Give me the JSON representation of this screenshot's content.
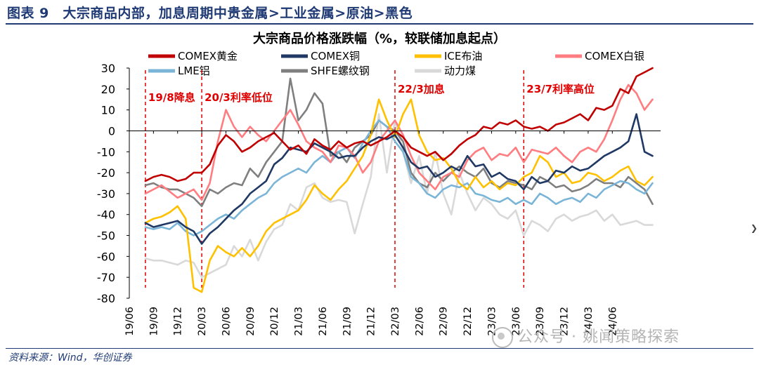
{
  "figure_caption": "图表 9　大宗商品内部，加息周期中贵金属>工业金属>原油>黑色",
  "source_note": "资料来源：Wind，华创证券",
  "watermark_text": "公众号 · 姚闻策略探索",
  "chart_data": {
    "type": "line",
    "title": "大宗商品价格涨跌幅（%，较联储加息起点）",
    "xlabel": "",
    "ylabel": "",
    "ylim": [
      -80,
      30
    ],
    "yticks": [
      30,
      20,
      10,
      0,
      -10,
      -20,
      -30,
      -40,
      -50,
      -60,
      -70,
      -80
    ],
    "xlim": [
      0,
      66
    ],
    "xtick_labels": [
      "19/06",
      "19/09",
      "19/12",
      "20/03",
      "20/06",
      "20/09",
      "20/12",
      "21/03",
      "21/06",
      "21/09",
      "21/12",
      "22/03",
      "22/06",
      "22/09",
      "22/12",
      "23/03",
      "23/06",
      "23/09",
      "23/12",
      "24/03",
      "24/06"
    ],
    "legend_position": "top",
    "grid": false,
    "annotations": [
      {
        "label": "19/8降息",
        "x": 2
      },
      {
        "label": "20/3利率低位",
        "x": 9
      },
      {
        "label": "22/3加息",
        "x": 33
      },
      {
        "label": "23/7利率高位",
        "x": 49
      }
    ],
    "series": [
      {
        "name": "COMEX黄金",
        "color": "#c00000",
        "x": [
          2,
          3,
          4,
          5,
          6,
          7,
          8,
          9,
          10,
          11,
          12,
          13,
          14,
          15,
          16,
          17,
          18,
          19,
          20,
          21,
          22,
          23,
          24,
          25,
          26,
          27,
          28,
          29,
          30,
          31,
          32,
          33,
          34,
          35,
          36,
          37,
          38,
          39,
          40,
          41,
          42,
          43,
          44,
          45,
          46,
          47,
          48,
          49,
          50,
          51,
          52,
          53,
          54,
          55,
          56,
          57,
          58,
          59,
          60,
          61,
          62,
          63,
          64,
          65
        ],
        "y": [
          -24,
          -22,
          -21,
          -22,
          -24,
          -23,
          -20,
          -20,
          -16,
          -7,
          -2,
          -5,
          -10,
          -8,
          -5,
          -3,
          -1,
          -5,
          -9,
          -7,
          -11,
          -4,
          -7,
          -9,
          -5,
          -8,
          -6,
          -5,
          -7,
          -5,
          -3,
          0,
          -3,
          -8,
          -10,
          -12,
          -10,
          -14,
          -11,
          -7,
          -4,
          -2,
          2,
          1,
          4,
          3,
          5,
          2,
          1,
          2,
          0,
          3,
          4,
          6,
          8,
          5,
          11,
          10,
          12,
          20,
          18,
          26,
          28,
          30
        ]
      },
      {
        "name": "COMEX铜",
        "color": "#1f3864",
        "x": [
          2,
          3,
          4,
          5,
          6,
          7,
          8,
          9,
          10,
          11,
          12,
          13,
          14,
          15,
          16,
          17,
          18,
          19,
          20,
          21,
          22,
          23,
          24,
          25,
          26,
          27,
          28,
          29,
          30,
          31,
          32,
          33,
          34,
          35,
          36,
          37,
          38,
          39,
          40,
          41,
          42,
          43,
          44,
          45,
          46,
          47,
          48,
          49,
          50,
          51,
          52,
          53,
          54,
          55,
          56,
          57,
          58,
          59,
          60,
          61,
          62,
          63,
          64,
          65
        ],
        "y": [
          -44,
          -46,
          -45,
          -44,
          -43,
          -46,
          -48,
          -54,
          -49,
          -46,
          -42,
          -38,
          -35,
          -30,
          -27,
          -24,
          -16,
          -13,
          -8,
          -9,
          -10,
          -6,
          -8,
          -10,
          -13,
          -12,
          -12,
          -8,
          -5,
          -3,
          -4,
          -2,
          -8,
          -15,
          -18,
          -17,
          -22,
          -20,
          -17,
          -19,
          -12,
          -17,
          -16,
          -22,
          -20,
          -23,
          -24,
          -28,
          -22,
          -25,
          -24,
          -19,
          -20,
          -17,
          -19,
          -18,
          -15,
          -12,
          -10,
          -8,
          -5,
          8,
          -10,
          -12
        ]
      },
      {
        "name": "ICE布油",
        "color": "#ffc000",
        "x": [
          2,
          3,
          4,
          5,
          6,
          7,
          8,
          9,
          10,
          11,
          12,
          13,
          14,
          15,
          16,
          17,
          18,
          19,
          20,
          21,
          22,
          23,
          24,
          25,
          26,
          27,
          28,
          29,
          30,
          31,
          32,
          33,
          34,
          35,
          36,
          37,
          38,
          39,
          40,
          41,
          42,
          43,
          44,
          45,
          46,
          47,
          48,
          49,
          50,
          51,
          52,
          53,
          54,
          55,
          56,
          57,
          58,
          59,
          60,
          61,
          62,
          63,
          64,
          65
        ],
        "y": [
          -44,
          -42,
          -41,
          -39,
          -36,
          -42,
          -75,
          -77,
          -62,
          -55,
          -58,
          -60,
          -56,
          -60,
          -55,
          -48,
          -44,
          -42,
          -40,
          -38,
          -33,
          -26,
          -30,
          -33,
          -28,
          -24,
          -18,
          -12,
          -2,
          15,
          5,
          -3,
          8,
          15,
          -2,
          -10,
          -14,
          -13,
          -18,
          -25,
          -28,
          -22,
          -27,
          -24,
          -28,
          -25,
          -26,
          -22,
          -20,
          -12,
          -15,
          -22,
          -20,
          -25,
          -24,
          -20,
          -21,
          -24,
          -22,
          -19,
          -17,
          -24,
          -26,
          -22
        ]
      },
      {
        "name": "COMEX白银",
        "color": "#ff7c80",
        "x": [
          2,
          3,
          4,
          5,
          6,
          7,
          8,
          9,
          10,
          11,
          12,
          13,
          14,
          15,
          16,
          17,
          18,
          19,
          20,
          21,
          22,
          23,
          24,
          25,
          26,
          27,
          28,
          29,
          30,
          31,
          32,
          33,
          34,
          35,
          36,
          37,
          38,
          39,
          40,
          41,
          42,
          43,
          44,
          45,
          46,
          47,
          48,
          49,
          50,
          51,
          52,
          53,
          54,
          55,
          56,
          57,
          58,
          59,
          60,
          61,
          62,
          63,
          64,
          65
        ],
        "y": [
          -30,
          -28,
          -26,
          -29,
          -32,
          -30,
          -28,
          -33,
          -25,
          -5,
          10,
          2,
          -3,
          2,
          -2,
          -5,
          0,
          5,
          10,
          3,
          -5,
          -8,
          -10,
          -15,
          -7,
          -8,
          -12,
          -20,
          -15,
          -5,
          0,
          5,
          -2,
          -12,
          -20,
          -24,
          -28,
          -22,
          -20,
          -22,
          -14,
          -10,
          -8,
          -14,
          -11,
          -12,
          -8,
          -15,
          -9,
          -10,
          -11,
          -8,
          -12,
          -15,
          -10,
          -8,
          -10,
          -4,
          5,
          15,
          22,
          18,
          10,
          15
        ]
      },
      {
        "name": "LME铝",
        "color": "#7ab5d8",
        "x": [
          2,
          3,
          4,
          5,
          6,
          7,
          8,
          9,
          10,
          11,
          12,
          13,
          14,
          15,
          16,
          17,
          18,
          19,
          20,
          21,
          22,
          23,
          24,
          25,
          26,
          27,
          28,
          29,
          30,
          31,
          32,
          33,
          34,
          35,
          36,
          37,
          38,
          39,
          40,
          41,
          42,
          43,
          44,
          45,
          46,
          47,
          48,
          49,
          50,
          51,
          52,
          53,
          54,
          55,
          56,
          57,
          58,
          59,
          60,
          61,
          62,
          63,
          64,
          65
        ],
        "y": [
          -46,
          -47,
          -46,
          -47,
          -44,
          -48,
          -50,
          -48,
          -45,
          -42,
          -40,
          -42,
          -38,
          -35,
          -32,
          -30,
          -25,
          -22,
          -20,
          -18,
          -20,
          -15,
          -12,
          -15,
          -10,
          -8,
          -13,
          -6,
          0,
          5,
          2,
          -5,
          -10,
          -22,
          -25,
          -30,
          -32,
          -28,
          -26,
          -27,
          -25,
          -30,
          -31,
          -33,
          -34,
          -32,
          -35,
          -33,
          -35,
          -30,
          -32,
          -35,
          -33,
          -32,
          -34,
          -30,
          -32,
          -28,
          -26,
          -24,
          -25,
          -28,
          -30,
          -25
        ]
      },
      {
        "name": "SHFE螺纹钢",
        "color": "#7f7f7f",
        "x": [
          2,
          3,
          4,
          5,
          6,
          7,
          8,
          9,
          10,
          11,
          12,
          13,
          14,
          15,
          16,
          17,
          18,
          19,
          20,
          21,
          22,
          23,
          24,
          25,
          26,
          27,
          28,
          29,
          30,
          31,
          32,
          33,
          34,
          35,
          36,
          37,
          38,
          39,
          40,
          41,
          42,
          43,
          44,
          45,
          46,
          47,
          48,
          49,
          50,
          51,
          52,
          53,
          54,
          55,
          56,
          57,
          58,
          59,
          60,
          61,
          62,
          63,
          64,
          65
        ],
        "y": [
          -26,
          -25,
          -27,
          -28,
          -28,
          -30,
          -32,
          -36,
          -28,
          -30,
          -27,
          -25,
          -26,
          -18,
          -22,
          -15,
          -10,
          -5,
          25,
          5,
          10,
          18,
          13,
          -12,
          -10,
          -15,
          -8,
          -5,
          -2,
          5,
          2,
          0,
          -5,
          -20,
          -25,
          -27,
          -20,
          -24,
          -20,
          -17,
          -20,
          -22,
          -18,
          -25,
          -27,
          -24,
          -25,
          -26,
          -28,
          -22,
          -24,
          -27,
          -26,
          -29,
          -28,
          -26,
          -23,
          -25,
          -25,
          -27,
          -22,
          -25,
          -28,
          -35
        ]
      },
      {
        "name": "动力煤",
        "color": "#d9d9d9",
        "x": [
          2,
          3,
          4,
          5,
          6,
          7,
          8,
          9,
          10,
          11,
          12,
          13,
          14,
          15,
          16,
          17,
          18,
          19,
          20,
          21,
          22,
          23,
          24,
          25,
          26,
          27,
          28,
          29,
          30,
          31,
          32,
          33,
          34,
          35,
          36,
          37,
          38,
          39,
          40,
          41,
          42,
          43,
          44,
          45,
          46,
          47,
          48,
          49,
          50,
          51,
          52,
          53,
          54,
          55,
          56,
          57,
          58,
          59,
          60,
          61,
          62,
          63,
          64,
          65
        ],
        "y": [
          -61,
          -62,
          -62,
          -63,
          -64,
          -62,
          -63,
          -70,
          -68,
          -66,
          -64,
          -55,
          -60,
          -52,
          -62,
          -53,
          -47,
          -45,
          -35,
          -38,
          -27,
          -25,
          -32,
          -34,
          -33,
          -34,
          -49,
          -35,
          -22,
          8,
          -20,
          5,
          -10,
          -25,
          -12,
          -30,
          -10,
          -30,
          -40,
          -20,
          -30,
          -38,
          -32,
          -35,
          -40,
          -42,
          -38,
          -50,
          -43,
          -45,
          -48,
          -42,
          -40,
          -43,
          -41,
          -40,
          -38,
          -43,
          -40,
          -45,
          -44,
          -43,
          -45,
          -45
        ]
      }
    ]
  }
}
